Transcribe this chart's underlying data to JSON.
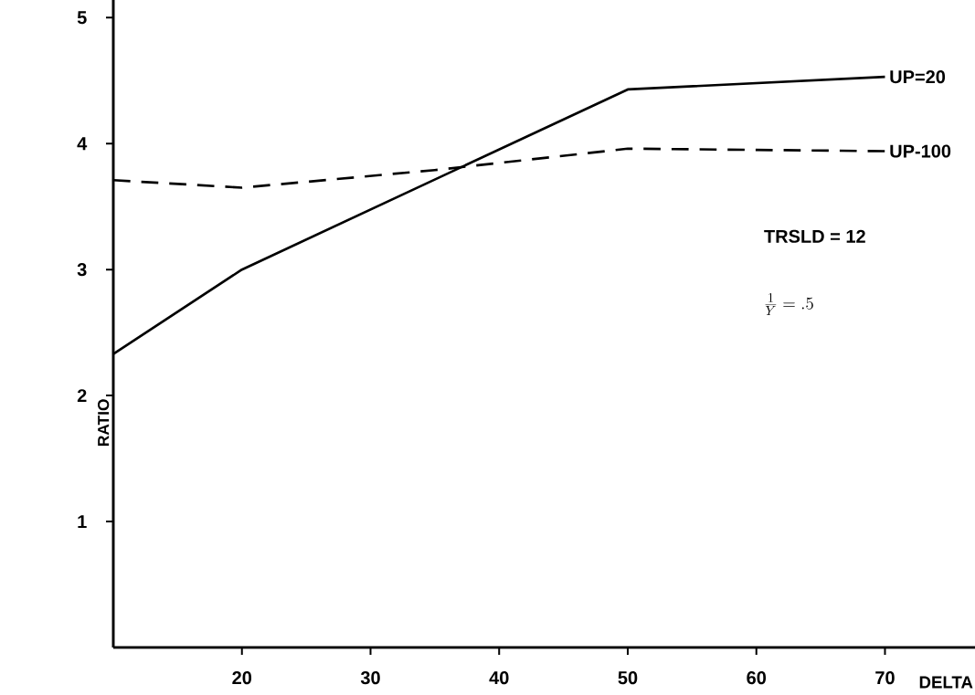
{
  "chart_data": {
    "type": "line",
    "xlabel": "DELTA",
    "ylabel": "RATIO",
    "xlim": [
      10,
      77
    ],
    "ylim": [
      0,
      5.14
    ],
    "xticks": [
      20,
      30,
      40,
      50,
      60,
      70
    ],
    "yticks": [
      1,
      2,
      3,
      4,
      5
    ],
    "grid": false,
    "legend": false,
    "marker": "none",
    "series": [
      {
        "name": "UP=20",
        "color": "#000000",
        "line_style": "solid",
        "x": [
          10,
          20,
          50,
          70
        ],
        "values": [
          2.33,
          3.0,
          4.43,
          4.53
        ]
      },
      {
        "name": "UP-100",
        "color": "#000000",
        "line_style": "dashed",
        "x": [
          10,
          20,
          35,
          50,
          70
        ],
        "values": [
          3.71,
          3.65,
          3.79,
          3.96,
          3.94
        ]
      }
    ],
    "annotations": [
      "TRSLD = 12",
      "\\frac{1}{Y} = .5"
    ]
  }
}
